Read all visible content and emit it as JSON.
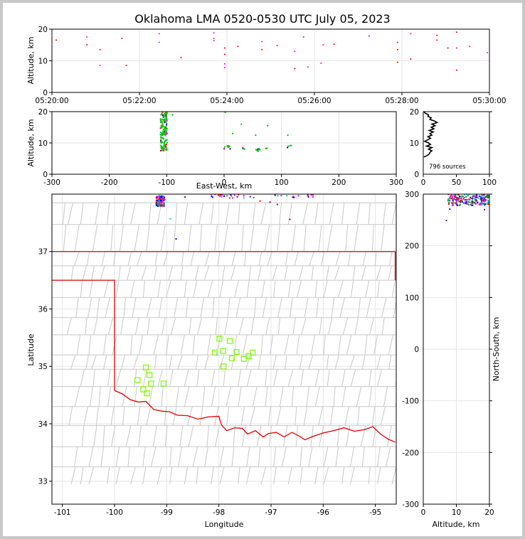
{
  "title": "Oklahoma LMA 0520-0530 UTC July 05, 2023",
  "colors": {
    "grid": "#e6e6e6",
    "county": "#c8c8c8",
    "state": "#e00000",
    "station": "#7fff00",
    "profile": "#000000",
    "sources": [
      "#0000ff",
      "#00a000",
      "#00c8c8",
      "#ff0000",
      "#ff00ff",
      "#800080"
    ]
  },
  "chart_data": [
    {
      "id": "time_height",
      "type": "scatter",
      "xlabel": "",
      "ylabel": "Altitude, km",
      "xticks": [
        "05:20:00",
        "05:22:00",
        "05:24:00",
        "05:26:00",
        "05:28:00",
        "05:30:00"
      ],
      "xlim_minutes": [
        0,
        10
      ],
      "ylim": [
        0,
        20
      ],
      "yticks": [
        0,
        10,
        20
      ],
      "grid": true,
      "points": [
        {
          "t": 0.1,
          "alt": 16.5
        },
        {
          "t": 0.8,
          "alt": 17.5
        },
        {
          "t": 0.8,
          "alt": 15.0
        },
        {
          "t": 1.1,
          "alt": 13.5
        },
        {
          "t": 1.1,
          "alt": 8.5
        },
        {
          "t": 1.6,
          "alt": 17.0
        },
        {
          "t": 1.7,
          "alt": 8.5
        },
        {
          "t": 2.45,
          "alt": 18.5
        },
        {
          "t": 2.45,
          "alt": 15.8
        },
        {
          "t": 2.95,
          "alt": 11.0
        },
        {
          "t": 3.7,
          "alt": 18.8
        },
        {
          "t": 3.7,
          "alt": 17.0
        },
        {
          "t": 3.7,
          "alt": 16.3
        },
        {
          "t": 3.95,
          "alt": 14.0
        },
        {
          "t": 3.95,
          "alt": 12.0
        },
        {
          "t": 3.95,
          "alt": 9.0
        },
        {
          "t": 3.95,
          "alt": 7.8
        },
        {
          "t": 4.25,
          "alt": 14.5
        },
        {
          "t": 4.8,
          "alt": 16.0
        },
        {
          "t": 4.8,
          "alt": 13.5
        },
        {
          "t": 5.15,
          "alt": 14.8
        },
        {
          "t": 5.55,
          "alt": 13.0
        },
        {
          "t": 5.55,
          "alt": 7.5
        },
        {
          "t": 5.75,
          "alt": 17.5
        },
        {
          "t": 5.85,
          "alt": 8.0
        },
        {
          "t": 6.15,
          "alt": 9.2
        },
        {
          "t": 6.2,
          "alt": 15.0
        },
        {
          "t": 6.45,
          "alt": 15.2
        },
        {
          "t": 7.25,
          "alt": 17.8
        },
        {
          "t": 7.9,
          "alt": 15.8
        },
        {
          "t": 7.9,
          "alt": 13.5
        },
        {
          "t": 7.9,
          "alt": 9.5
        },
        {
          "t": 8.2,
          "alt": 18.5
        },
        {
          "t": 8.2,
          "alt": 10.5
        },
        {
          "t": 8.8,
          "alt": 18.0
        },
        {
          "t": 8.8,
          "alt": 16.5
        },
        {
          "t": 9.05,
          "alt": 14.0
        },
        {
          "t": 9.25,
          "alt": 19.0
        },
        {
          "t": 9.25,
          "alt": 14.0
        },
        {
          "t": 9.25,
          "alt": 7.0
        },
        {
          "t": 9.55,
          "alt": 14.5
        },
        {
          "t": 9.95,
          "alt": 12.5
        }
      ]
    },
    {
      "id": "ew_height",
      "type": "scatter",
      "xlabel": "East-West, km",
      "ylabel": "Altitude, km",
      "xlim": [
        -300,
        300
      ],
      "xticks": [
        -300,
        -200,
        -100,
        0,
        100,
        200,
        300
      ],
      "ylim": [
        0,
        20
      ],
      "yticks": [
        0,
        10,
        20
      ],
      "grid": true,
      "clusters": [
        {
          "x": -105,
          "alt_min": 7.5,
          "alt_max": 20,
          "count": 150
        },
        {
          "x": 5,
          "alt_min": 7.5,
          "alt_max": 9.5,
          "count": 8
        },
        {
          "x": 30,
          "alt_min": 7.8,
          "alt_max": 8.5,
          "count": 5
        },
        {
          "x": 58,
          "alt_min": 7.2,
          "alt_max": 8.2,
          "count": 8
        },
        {
          "x": 75,
          "alt_min": 8.0,
          "alt_max": 8.6,
          "count": 3
        },
        {
          "x": 113,
          "alt_min": 8.5,
          "alt_max": 9.2,
          "count": 4
        }
      ],
      "points": [
        {
          "x": -90,
          "alt": 19.0
        },
        {
          "x": 30,
          "alt": 16.0
        },
        {
          "x": 15,
          "alt": 13.0
        },
        {
          "x": 55,
          "alt": 12.5
        },
        {
          "x": 76,
          "alt": 15.5
        },
        {
          "x": 111,
          "alt": 12.5
        },
        {
          "x": 2,
          "alt": 19.8
        }
      ]
    },
    {
      "id": "alt_histogram",
      "type": "line",
      "xlim": [
        0,
        100
      ],
      "xticks": [
        0,
        50,
        100
      ],
      "ylim": [
        0,
        20
      ],
      "yticks": [
        0,
        10,
        20
      ],
      "annotation": "796 sources",
      "profile": [
        {
          "alt": 5.5,
          "n": 1
        },
        {
          "alt": 6.0,
          "n": 6
        },
        {
          "alt": 6.5,
          "n": 9
        },
        {
          "alt": 7.0,
          "n": 10
        },
        {
          "alt": 7.5,
          "n": 13
        },
        {
          "alt": 8.0,
          "n": 8
        },
        {
          "alt": 8.5,
          "n": 13
        },
        {
          "alt": 9.0,
          "n": 5
        },
        {
          "alt": 9.5,
          "n": 11
        },
        {
          "alt": 10.0,
          "n": 8
        },
        {
          "alt": 10.5,
          "n": 2
        },
        {
          "alt": 11.0,
          "n": 7
        },
        {
          "alt": 11.5,
          "n": 11
        },
        {
          "alt": 12.0,
          "n": 7
        },
        {
          "alt": 12.5,
          "n": 13
        },
        {
          "alt": 13.0,
          "n": 10
        },
        {
          "alt": 13.5,
          "n": 15
        },
        {
          "alt": 14.0,
          "n": 9
        },
        {
          "alt": 14.5,
          "n": 16
        },
        {
          "alt": 15.0,
          "n": 12
        },
        {
          "alt": 15.5,
          "n": 18
        },
        {
          "alt": 16.0,
          "n": 13
        },
        {
          "alt": 16.5,
          "n": 21
        },
        {
          "alt": 17.0,
          "n": 17
        },
        {
          "alt": 17.5,
          "n": 10
        },
        {
          "alt": 18.0,
          "n": 12
        },
        {
          "alt": 18.5,
          "n": 7
        },
        {
          "alt": 19.0,
          "n": 8
        },
        {
          "alt": 19.5,
          "n": 3
        },
        {
          "alt": 20.0,
          "n": 1
        }
      ]
    },
    {
      "id": "plan_view",
      "type": "scatter",
      "xlabel": "Longitude",
      "ylabel": "Latitude",
      "xlim": [
        -101.2,
        -94.6
      ],
      "xticks": [
        -101,
        -100,
        -99,
        -98,
        -97,
        -96,
        -95
      ],
      "ylim": [
        32.6,
        38.0
      ],
      "yticks": [
        33,
        34,
        35,
        36,
        37
      ],
      "grid": true,
      "stations": [
        {
          "lon": -97.99,
          "lat": 35.48
        },
        {
          "lon": -97.79,
          "lat": 35.44
        },
        {
          "lon": -98.08,
          "lat": 35.24
        },
        {
          "lon": -97.92,
          "lat": 35.27
        },
        {
          "lon": -97.66,
          "lat": 35.25
        },
        {
          "lon": -97.35,
          "lat": 35.24
        },
        {
          "lon": -97.43,
          "lat": 35.18
        },
        {
          "lon": -97.75,
          "lat": 35.14
        },
        {
          "lon": -97.52,
          "lat": 35.13
        },
        {
          "lon": -97.91,
          "lat": 35.0
        },
        {
          "lon": -99.4,
          "lat": 34.98
        },
        {
          "lon": -99.33,
          "lat": 34.85
        },
        {
          "lon": -99.56,
          "lat": 34.76
        },
        {
          "lon": -99.3,
          "lat": 34.7
        },
        {
          "lon": -99.06,
          "lat": 34.7
        },
        {
          "lon": -99.45,
          "lat": 34.6
        },
        {
          "lon": -99.38,
          "lat": 34.53
        }
      ],
      "clusters": [
        {
          "lon": -99.12,
          "lat": 37.88,
          "spread_lon": 0.08,
          "spread_lat": 0.09,
          "count": 120
        },
        {
          "lon": -98.05,
          "lat": 37.97,
          "spread_lon": 0.15,
          "spread_lat": 0.03,
          "count": 10
        },
        {
          "lon": -97.6,
          "lat": 37.96,
          "spread_lon": 0.3,
          "spread_lat": 0.03,
          "count": 14
        },
        {
          "lon": -96.55,
          "lat": 37.97,
          "spread_lon": 0.4,
          "spread_lat": 0.03,
          "count": 14
        }
      ],
      "points": [
        {
          "lon": -98.93,
          "lat": 37.57
        },
        {
          "lon": -98.82,
          "lat": 37.22
        },
        {
          "lon": -96.88,
          "lat": 37.82
        },
        {
          "lon": -96.64,
          "lat": 37.56
        },
        {
          "lon": -97.21,
          "lat": 37.88
        },
        {
          "lon": -97.02,
          "lat": 37.86
        },
        {
          "lon": -98.65,
          "lat": 37.95
        }
      ]
    },
    {
      "id": "ns_height",
      "type": "scatter",
      "xlabel": "Altitude, km",
      "ylabel": "North-South, km",
      "xlim": [
        0,
        20
      ],
      "xticks": [
        0,
        10,
        20
      ],
      "ylim": [
        -300,
        300
      ],
      "yticks": [
        -300,
        -200,
        -100,
        0,
        100,
        200,
        300
      ],
      "grid": true,
      "clusters": [
        {
          "alt_min": 7.5,
          "alt_max": 20,
          "ns_min": 278,
          "ns_max": 300,
          "count": 200
        }
      ],
      "points": [
        {
          "alt": 7.0,
          "ns": 249
        },
        {
          "alt": 8.0,
          "ns": 271
        },
        {
          "alt": 18.5,
          "ns": 270
        }
      ]
    }
  ]
}
